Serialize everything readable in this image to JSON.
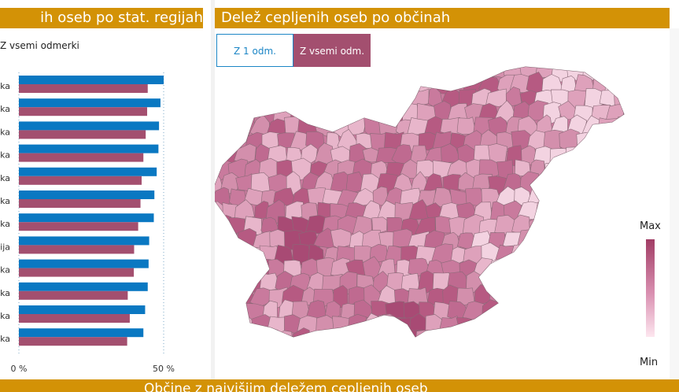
{
  "left_panel": {
    "title": "ih oseb po stat. regijah",
    "legend_label": "Z vsemi odmerki"
  },
  "right_panel": {
    "title": "Delež cepljenih oseb po občinah",
    "buttons": {
      "first": "Z 1 odm.",
      "second": "Z vsemi odm."
    },
    "scale": {
      "max_label": "Max",
      "min_label": "Min"
    }
  },
  "bottom": {
    "title": "Občine z najvišjim deležem cepljenih oseb"
  },
  "colors": {
    "first_dose": "#0a78c2",
    "all_doses": "#a34f6f",
    "header": "#d39206"
  },
  "chart_data": {
    "type": "bar",
    "orientation": "horizontal",
    "categories": [
      "ka",
      "ka",
      "ka",
      "ka",
      "ka",
      "ka",
      "ka",
      "ija",
      "ka",
      "ka",
      "ka",
      "ka"
    ],
    "series": [
      {
        "name": "Z 1 odm.",
        "values": [
          50.0,
          48.9,
          48.4,
          48.2,
          47.6,
          46.8,
          46.6,
          45.0,
          44.8,
          44.5,
          43.6,
          43.0
        ]
      },
      {
        "name": "Z vsemi odm.",
        "values": [
          44.5,
          44.3,
          43.8,
          43.0,
          42.4,
          42.0,
          41.2,
          39.8,
          39.7,
          37.6,
          38.3,
          37.4
        ]
      }
    ],
    "x_tick_labels": [
      "0 %",
      "50 %"
    ],
    "xlim": [
      0,
      50
    ],
    "grid": true
  }
}
